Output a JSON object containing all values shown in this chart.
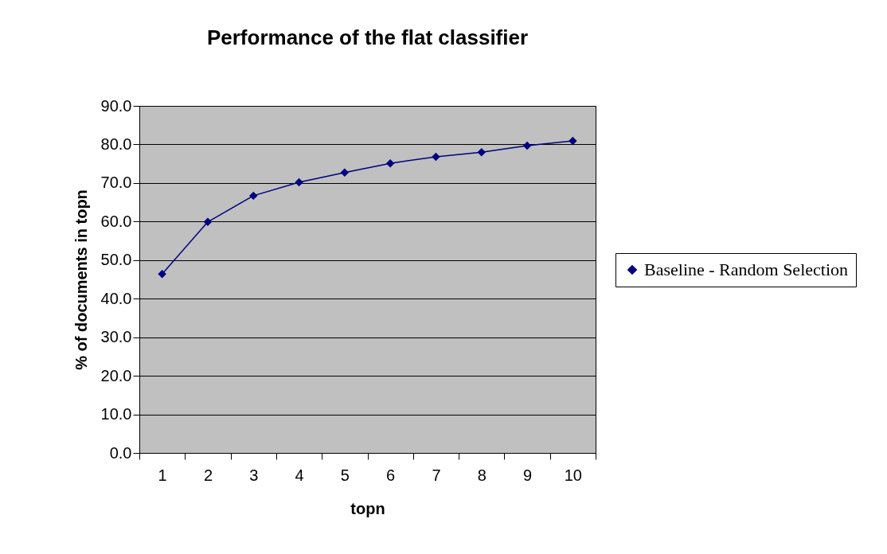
{
  "chart_data": {
    "type": "line",
    "title": "Performance of the flat classifier",
    "xlabel": "topn",
    "ylabel": "% of documents in topn",
    "categories": [
      "1",
      "2",
      "3",
      "4",
      "5",
      "6",
      "7",
      "8",
      "9",
      "10"
    ],
    "series": [
      {
        "name": "Baseline - Random Selection",
        "color": "#000080",
        "values": [
          46.4,
          59.9,
          66.7,
          70.2,
          72.7,
          75.1,
          76.8,
          78.0,
          79.7,
          80.9
        ]
      }
    ],
    "ylim": [
      0,
      90
    ],
    "yticks": [
      {
        "value": 0,
        "label": "0.0"
      },
      {
        "value": 10,
        "label": "10.0"
      },
      {
        "value": 20,
        "label": "20.0"
      },
      {
        "value": 30,
        "label": "30.0"
      },
      {
        "value": 40,
        "label": "40.0"
      },
      {
        "value": 50,
        "label": "50.0"
      },
      {
        "value": 60,
        "label": "60.0"
      },
      {
        "value": 70,
        "label": "70.0"
      },
      {
        "value": 80,
        "label": "80.0"
      },
      {
        "value": 90,
        "label": "90.0"
      }
    ],
    "grid": "y",
    "legend": "right",
    "marker": "diamond",
    "line_style": "solid"
  }
}
